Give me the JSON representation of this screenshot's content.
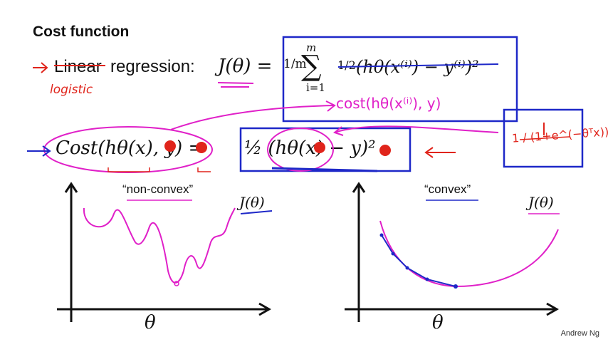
{
  "slide": {
    "title": "Cost function",
    "linear_word": "Linear",
    "regression_word": "regression:",
    "logistic_note": "logistic",
    "J_of_theta": "J(θ) =",
    "frac_1_m": "1/m",
    "sum_upper": "m",
    "sum_lower": "i=1",
    "half": "1/2",
    "squared_error": "(hθ(x⁽ⁱ⁾) − y⁽ⁱ⁾)²",
    "cost_note": "cost(hθ(x⁽ⁱ⁾), y)",
    "cost_lhs": "Cost(hθ(x), y) =",
    "cost_rhs": "½ (hθ(x) − y)²",
    "sigmoid_note": "1 / (1+e^(−θᵀx))",
    "left_plot_label": "“non-convex”",
    "right_plot_label": "“convex”",
    "left_J": "J(θ)",
    "right_J": "J(θ)",
    "left_axis": "θ",
    "right_axis": "θ",
    "credit": "Andrew Ng"
  },
  "colors": {
    "ink": "#111111",
    "red_pen": "#e0241b",
    "blue_pen": "#1e28c8",
    "magenta_pen": "#e020c8"
  }
}
